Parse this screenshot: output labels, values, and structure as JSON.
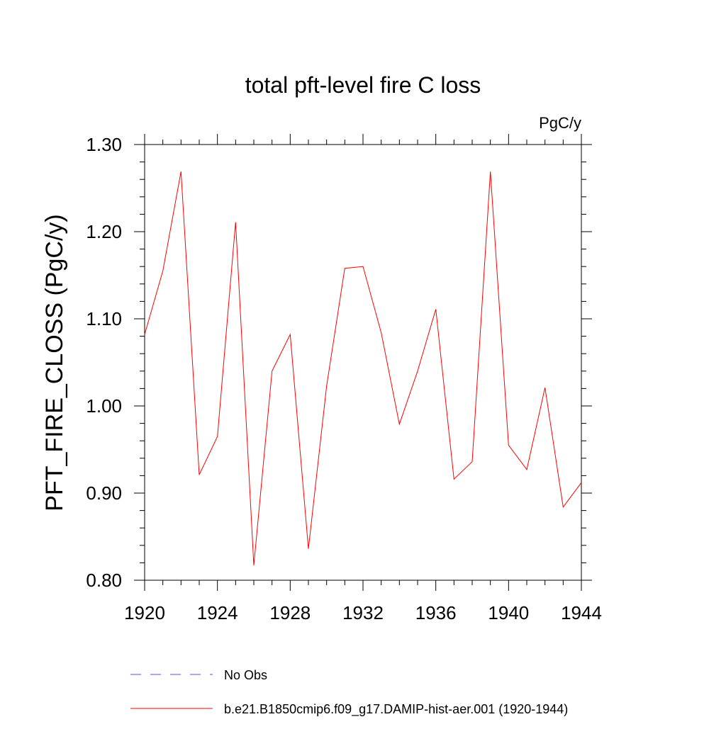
{
  "chart_data": {
    "type": "line",
    "title": "total pft-level fire C loss",
    "units": "PgC/y",
    "ylabel": "PFT_FIRE_CLOSS  (PgC/y)",
    "xlabel": "",
    "xlim": [
      1920,
      1944
    ],
    "ylim": [
      0.8,
      1.3
    ],
    "xticks": [
      1920,
      1924,
      1928,
      1932,
      1936,
      1940,
      1944
    ],
    "yticks": [
      "0.80",
      "0.90",
      "1.00",
      "1.10",
      "1.20",
      "1.30"
    ],
    "grid": false,
    "legend_position": "bottom",
    "series": [
      {
        "name": "b.e21.B1850cmip6.f09_g17.DAMIP-hist-aer.001 (1920-1944)",
        "color": "#ff0000",
        "style": "solid",
        "x": [
          1920,
          1921,
          1922,
          1923,
          1924,
          1925,
          1926,
          1927,
          1928,
          1929,
          1930,
          1931,
          1932,
          1933,
          1934,
          1935,
          1936,
          1937,
          1938,
          1939,
          1940,
          1941,
          1942,
          1943,
          1944
        ],
        "values": [
          1.082,
          1.155,
          1.269,
          0.921,
          0.965,
          1.211,
          0.817,
          1.04,
          1.082,
          0.836,
          1.023,
          1.158,
          1.16,
          1.084,
          0.979,
          1.04,
          1.111,
          0.916,
          0.936,
          1.269,
          0.955,
          0.927,
          1.021,
          0.884,
          0.912
        ]
      }
    ],
    "legend": [
      {
        "label": "No Obs",
        "color": "#5555cc",
        "style": "dashed"
      },
      {
        "label": "b.e21.B1850cmip6.f09_g17.DAMIP-hist-aer.001 (1920-1944)",
        "color": "#ff0000",
        "style": "solid"
      }
    ]
  }
}
